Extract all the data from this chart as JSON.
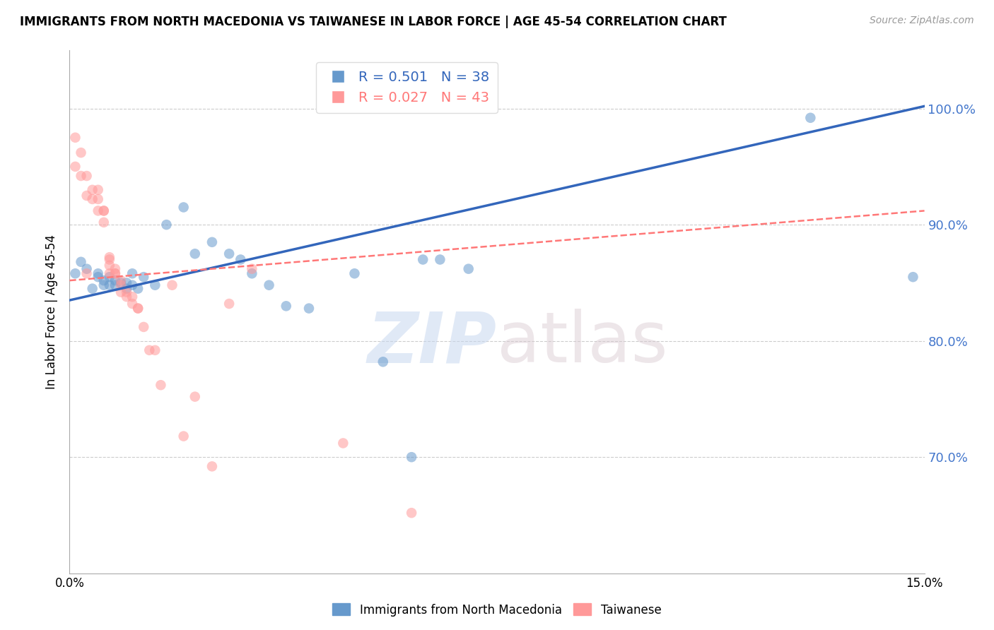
{
  "title": "IMMIGRANTS FROM NORTH MACEDONIA VS TAIWANESE IN LABOR FORCE | AGE 45-54 CORRELATION CHART",
  "source": "Source: ZipAtlas.com",
  "ylabel": "In Labor Force | Age 45-54",
  "x_min": 0.0,
  "x_max": 0.15,
  "y_min": 0.6,
  "y_max": 1.05,
  "y_ticks": [
    0.7,
    0.8,
    0.9,
    1.0
  ],
  "y_tick_labels": [
    "70.0%",
    "80.0%",
    "90.0%",
    "100.0%"
  ],
  "x_ticks": [
    0.0,
    0.03,
    0.06,
    0.09,
    0.12,
    0.15
  ],
  "x_tick_labels": [
    "0.0%",
    "",
    "",
    "",
    "",
    "15.0%"
  ],
  "blue_R": 0.501,
  "blue_N": 38,
  "pink_R": 0.027,
  "pink_N": 43,
  "blue_color": "#6699CC",
  "pink_color": "#FF9999",
  "blue_line_color": "#3366BB",
  "pink_line_color": "#FF7777",
  "watermark_zip": "ZIP",
  "watermark_atlas": "atlas",
  "legend_label_blue": "Immigrants from North Macedonia",
  "legend_label_pink": "Taiwanese",
  "blue_x": [
    0.001,
    0.002,
    0.003,
    0.004,
    0.005,
    0.005,
    0.006,
    0.006,
    0.007,
    0.007,
    0.008,
    0.008,
    0.009,
    0.01,
    0.01,
    0.011,
    0.011,
    0.012,
    0.013,
    0.015,
    0.017,
    0.02,
    0.022,
    0.025,
    0.028,
    0.03,
    0.032,
    0.035,
    0.038,
    0.042,
    0.05,
    0.055,
    0.06,
    0.062,
    0.065,
    0.07,
    0.13,
    0.148
  ],
  "blue_y": [
    0.858,
    0.868,
    0.862,
    0.845,
    0.855,
    0.858,
    0.848,
    0.852,
    0.848,
    0.855,
    0.852,
    0.848,
    0.85,
    0.85,
    0.845,
    0.858,
    0.848,
    0.845,
    0.855,
    0.848,
    0.9,
    0.915,
    0.875,
    0.885,
    0.875,
    0.87,
    0.858,
    0.848,
    0.83,
    0.828,
    0.858,
    0.782,
    0.7,
    0.87,
    0.87,
    0.862,
    0.992,
    0.855
  ],
  "pink_x": [
    0.001,
    0.001,
    0.002,
    0.002,
    0.003,
    0.003,
    0.003,
    0.004,
    0.004,
    0.005,
    0.005,
    0.005,
    0.006,
    0.006,
    0.006,
    0.007,
    0.007,
    0.007,
    0.007,
    0.008,
    0.008,
    0.008,
    0.009,
    0.009,
    0.009,
    0.01,
    0.01,
    0.011,
    0.011,
    0.012,
    0.012,
    0.013,
    0.014,
    0.015,
    0.016,
    0.018,
    0.02,
    0.022,
    0.025,
    0.028,
    0.032,
    0.048,
    0.06
  ],
  "pink_y": [
    0.975,
    0.95,
    0.962,
    0.942,
    0.942,
    0.925,
    0.858,
    0.93,
    0.922,
    0.93,
    0.922,
    0.912,
    0.912,
    0.912,
    0.902,
    0.872,
    0.87,
    0.865,
    0.858,
    0.862,
    0.858,
    0.858,
    0.852,
    0.848,
    0.842,
    0.842,
    0.838,
    0.838,
    0.832,
    0.828,
    0.828,
    0.812,
    0.792,
    0.792,
    0.762,
    0.848,
    0.718,
    0.752,
    0.692,
    0.832,
    0.862,
    0.712,
    0.652
  ],
  "blue_line_x": [
    0.0,
    0.15
  ],
  "blue_line_y": [
    0.835,
    1.002
  ],
  "pink_line_x": [
    0.0,
    0.15
  ],
  "pink_line_y": [
    0.852,
    0.912
  ]
}
